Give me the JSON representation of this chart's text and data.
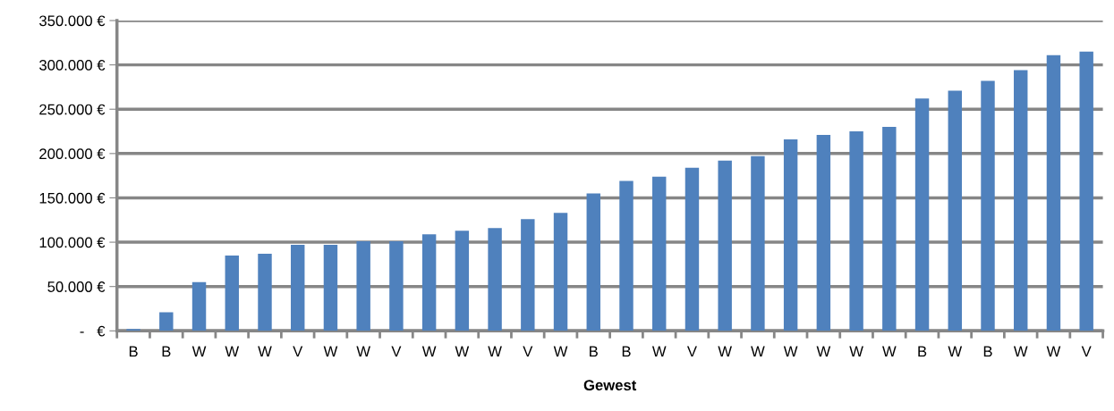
{
  "chart_data": {
    "type": "bar",
    "xlabel": "Gewest",
    "categories": [
      "B",
      "B",
      "W",
      "W",
      "W",
      "V",
      "W",
      "W",
      "V",
      "W",
      "W",
      "W",
      "V",
      "W",
      "B",
      "B",
      "W",
      "V",
      "W",
      "W",
      "W",
      "W",
      "W",
      "W",
      "B",
      "W",
      "B",
      "W",
      "W",
      "V"
    ],
    "values": [
      2000,
      21000,
      55000,
      85000,
      87000,
      97000,
      97000,
      101000,
      101000,
      109000,
      113000,
      116000,
      126000,
      133000,
      155000,
      169000,
      174000,
      184000,
      192000,
      197000,
      216000,
      221000,
      225000,
      230000,
      262000,
      271000,
      282000,
      294000,
      311000,
      315000
    ],
    "color": "#4f81bd",
    "ylim": [
      0,
      350000
    ],
    "yticks": [
      {
        "value": 0,
        "label": "-   €"
      },
      {
        "value": 50000,
        "label": "50.000 €"
      },
      {
        "value": 100000,
        "label": "100.000 €"
      },
      {
        "value": 150000,
        "label": "150.000 €"
      },
      {
        "value": 200000,
        "label": "200.000 €"
      },
      {
        "value": 250000,
        "label": "250.000 €"
      },
      {
        "value": 300000,
        "label": "300.000 €"
      },
      {
        "value": 350000,
        "label": "350.000 €"
      }
    ],
    "grid": "y",
    "legend": false
  }
}
